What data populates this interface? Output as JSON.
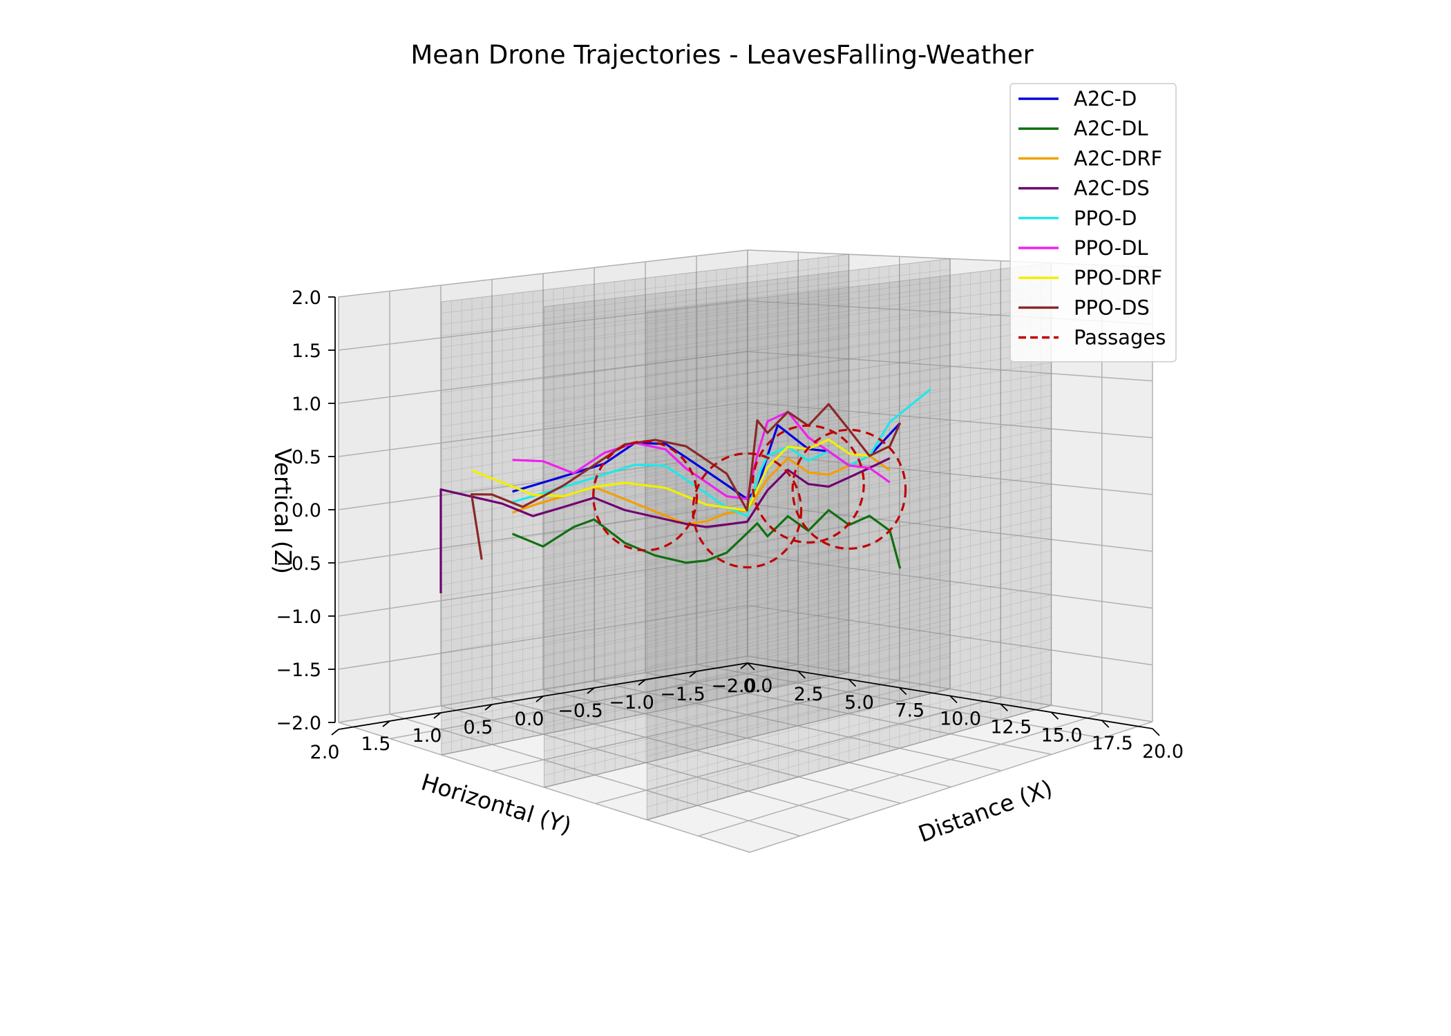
{
  "chart_data": {
    "type": "line",
    "projection": "3d",
    "title": "Mean Drone Trajectories - LeavesFalling-Weather",
    "xlabel": "Distance (X)",
    "ylabel": "Horizontal (Y)",
    "zlabel": "Vertical (Z)",
    "xlim": [
      0,
      20
    ],
    "ylim": [
      -2,
      2
    ],
    "zlim": [
      -2,
      2
    ],
    "x_ticks": [
      "0.0",
      "2.5",
      "5.0",
      "7.5",
      "10.0",
      "12.5",
      "15.0",
      "17.5",
      "20.0"
    ],
    "y_ticks": [
      "2.0",
      "1.5",
      "1.0",
      "0.5",
      "0.0",
      "−0.5",
      "−1.0",
      "−1.5",
      "−2.0"
    ],
    "z_ticks": [
      "−2.0",
      "−1.5",
      "−1.0",
      "−0.5",
      "0.0",
      "0.5",
      "1.0",
      "1.5",
      "2.0"
    ],
    "grid": true,
    "legend_position": "top-right",
    "walls_x": [
      5,
      10,
      15
    ],
    "passages": [
      {
        "x": 5,
        "y": 0,
        "z": 0.0
      },
      {
        "x": 10,
        "y": 0,
        "z": 0.0
      },
      {
        "x": 13,
        "y": 0,
        "z": 0.3
      },
      {
        "x": 15,
        "y": 0,
        "z": 0.3
      }
    ],
    "passage_label": "Passages",
    "passage_color": "#c00000",
    "series": [
      {
        "name": "A2C-D",
        "color": "#0000e0",
        "points": [
          [
            1,
            0.5,
            0
          ],
          [
            2,
            0.4,
            0.1
          ],
          [
            3,
            0.3,
            0.2
          ],
          [
            4,
            0.2,
            0.3
          ],
          [
            5,
            0.1,
            0.5
          ],
          [
            6,
            0,
            0.5
          ],
          [
            7,
            0,
            0.4
          ],
          [
            8,
            0,
            0.3
          ],
          [
            9,
            0,
            0.2
          ],
          [
            10,
            0,
            0.1
          ],
          [
            10.5,
            0,
            0.2
          ],
          [
            11,
            0,
            0.5
          ],
          [
            12,
            0.1,
            0.8
          ],
          [
            13,
            0,
            0.6
          ],
          [
            14,
            0,
            0.6
          ],
          [
            15,
            0,
            0.5
          ],
          [
            16,
            0,
            0.6
          ],
          [
            17,
            0,
            0.8
          ],
          [
            17.5,
            0,
            0.9
          ]
        ]
      },
      {
        "name": "A2C-DL",
        "color": "#107010",
        "points": [
          [
            1,
            0.5,
            -0.4
          ],
          [
            2,
            0.4,
            -0.5
          ],
          [
            3,
            0.3,
            -0.3
          ],
          [
            4,
            0.3,
            -0.2
          ],
          [
            5,
            0.2,
            -0.4
          ],
          [
            6,
            0.1,
            -0.5
          ],
          [
            7,
            0,
            -0.55
          ],
          [
            8,
            0,
            -0.5
          ],
          [
            9,
            0,
            -0.4
          ],
          [
            10,
            0,
            -0.2
          ],
          [
            10.5,
            0,
            -0.1
          ],
          [
            11,
            0,
            -0.2
          ],
          [
            12,
            0,
            0.0
          ],
          [
            13,
            0,
            -0.1
          ],
          [
            14,
            0,
            0.1
          ],
          [
            15,
            0,
            0.0
          ],
          [
            16,
            0,
            0.1
          ],
          [
            17,
            0,
            0.0
          ],
          [
            17.5,
            0,
            -0.3
          ]
        ]
      },
      {
        "name": "A2C-DRF",
        "color": "#f0a000",
        "points": [
          [
            1,
            0.5,
            -0.2
          ],
          [
            2,
            0.5,
            -0.1
          ],
          [
            3,
            0.4,
            0.0
          ],
          [
            4,
            0.3,
            0.1
          ],
          [
            5,
            0.2,
            0.0
          ],
          [
            6,
            0.1,
            -0.1
          ],
          [
            7,
            0,
            -0.2
          ],
          [
            8,
            0,
            -0.15
          ],
          [
            9,
            0,
            -0.05
          ],
          [
            10,
            0,
            0.0
          ],
          [
            11,
            0,
            0.3
          ],
          [
            12,
            0,
            0.5
          ],
          [
            13,
            0,
            0.4
          ],
          [
            14,
            0,
            0.4
          ],
          [
            15,
            0,
            0.5
          ],
          [
            16,
            0,
            0.6
          ],
          [
            17,
            0,
            0.5
          ]
        ]
      },
      {
        "name": "A2C-DS",
        "color": "#700070",
        "points": [
          [
            -1,
            0.8,
            -1.0
          ],
          [
            -1,
            0.8,
            0.0
          ],
          [
            0,
            0.7,
            -0.05
          ],
          [
            1,
            0.6,
            -0.1
          ],
          [
            2,
            0.5,
            -0.2
          ],
          [
            3,
            0.4,
            -0.1
          ],
          [
            4,
            0.3,
            0.0
          ],
          [
            5,
            0.2,
            -0.1
          ],
          [
            6,
            0.1,
            -0.15
          ],
          [
            7,
            0,
            -0.2
          ],
          [
            8,
            0,
            -0.2
          ],
          [
            9,
            0,
            -0.15
          ],
          [
            10,
            0,
            -0.1
          ],
          [
            11,
            0,
            0.2
          ],
          [
            12,
            0,
            0.4
          ],
          [
            13,
            0,
            0.3
          ],
          [
            14,
            0,
            0.3
          ],
          [
            15,
            0,
            0.4
          ],
          [
            16,
            0,
            0.5
          ],
          [
            17,
            0,
            0.6
          ]
        ]
      },
      {
        "name": "PPO-D",
        "color": "#20e8e8",
        "points": [
          [
            1,
            0.5,
            -0.1
          ],
          [
            2,
            0.4,
            0.0
          ],
          [
            3,
            0.3,
            0.1
          ],
          [
            4,
            0.2,
            0.2
          ],
          [
            5,
            0.1,
            0.3
          ],
          [
            6,
            0,
            0.3
          ],
          [
            7,
            0,
            0.2
          ],
          [
            8,
            0,
            0.1
          ],
          [
            9,
            0,
            0.0
          ],
          [
            10,
            0,
            -0.05
          ],
          [
            10.5,
            0,
            0.3
          ],
          [
            11,
            0,
            0.5
          ],
          [
            12,
            0,
            0.6
          ],
          [
            13,
            0,
            0.5
          ],
          [
            14,
            0,
            0.6
          ],
          [
            15,
            0,
            0.5
          ],
          [
            16,
            0,
            0.6
          ],
          [
            17,
            0,
            0.9
          ],
          [
            19,
            0,
            1.2
          ]
        ]
      },
      {
        "name": "PPO-DL",
        "color": "#f020f0",
        "points": [
          [
            1,
            0.5,
            0.3
          ],
          [
            2,
            0.4,
            0.3
          ],
          [
            3,
            0.3,
            0.2
          ],
          [
            4,
            0.2,
            0.4
          ],
          [
            5,
            0.1,
            0.5
          ],
          [
            6,
            0,
            0.45
          ],
          [
            7,
            0,
            0.3
          ],
          [
            8,
            0,
            0.2
          ],
          [
            9,
            0,
            0.1
          ],
          [
            10,
            0,
            0.1
          ],
          [
            10.5,
            0,
            0.5
          ],
          [
            11,
            0,
            0.8
          ],
          [
            12,
            0,
            0.9
          ],
          [
            13,
            0,
            0.7
          ],
          [
            14,
            0,
            0.6
          ],
          [
            15,
            0,
            0.5
          ],
          [
            16,
            0,
            0.5
          ],
          [
            17,
            0,
            0.4
          ]
        ]
      },
      {
        "name": "PPO-DRF",
        "color": "#f0f000",
        "points": [
          [
            0,
            0.7,
            0.2
          ],
          [
            1,
            0.6,
            0.1
          ],
          [
            2,
            0.5,
            0.0
          ],
          [
            3,
            0.4,
            0.0
          ],
          [
            4,
            0.3,
            0.1
          ],
          [
            5,
            0.2,
            0.15
          ],
          [
            6,
            0,
            0.1
          ],
          [
            7,
            0,
            0.05
          ],
          [
            8,
            0,
            0.0
          ],
          [
            9,
            0,
            0.0
          ],
          [
            10,
            0,
            0.0
          ],
          [
            11,
            0,
            0.4
          ],
          [
            12,
            0,
            0.6
          ],
          [
            13,
            0,
            0.6
          ],
          [
            14,
            0,
            0.7
          ],
          [
            15,
            0,
            0.6
          ],
          [
            16,
            0,
            0.6
          ],
          [
            17,
            0,
            0.7
          ]
        ]
      },
      {
        "name": "PPO-DS",
        "color": "#8a2828",
        "points": [
          [
            1,
            0.8,
            -0.6
          ],
          [
            0.5,
            0.8,
            0.0
          ],
          [
            1,
            0.7,
            0.0
          ],
          [
            2,
            0.6,
            -0.1
          ],
          [
            3,
            0.4,
            0.1
          ],
          [
            4,
            0.3,
            0.3
          ],
          [
            5,
            0.2,
            0.5
          ],
          [
            6,
            0.1,
            0.55
          ],
          [
            7,
            0,
            0.5
          ],
          [
            8,
            0,
            0.4
          ],
          [
            9,
            0,
            0.3
          ],
          [
            10,
            0,
            0.0
          ],
          [
            10.5,
            0,
            0.8
          ],
          [
            11,
            0,
            0.7
          ],
          [
            12,
            0,
            0.9
          ],
          [
            13,
            0,
            0.8
          ],
          [
            14,
            0,
            1.0
          ],
          [
            15,
            0,
            0.8
          ],
          [
            16,
            0,
            0.6
          ],
          [
            17,
            0,
            0.7
          ],
          [
            17.5,
            0,
            0.9
          ]
        ]
      }
    ]
  }
}
